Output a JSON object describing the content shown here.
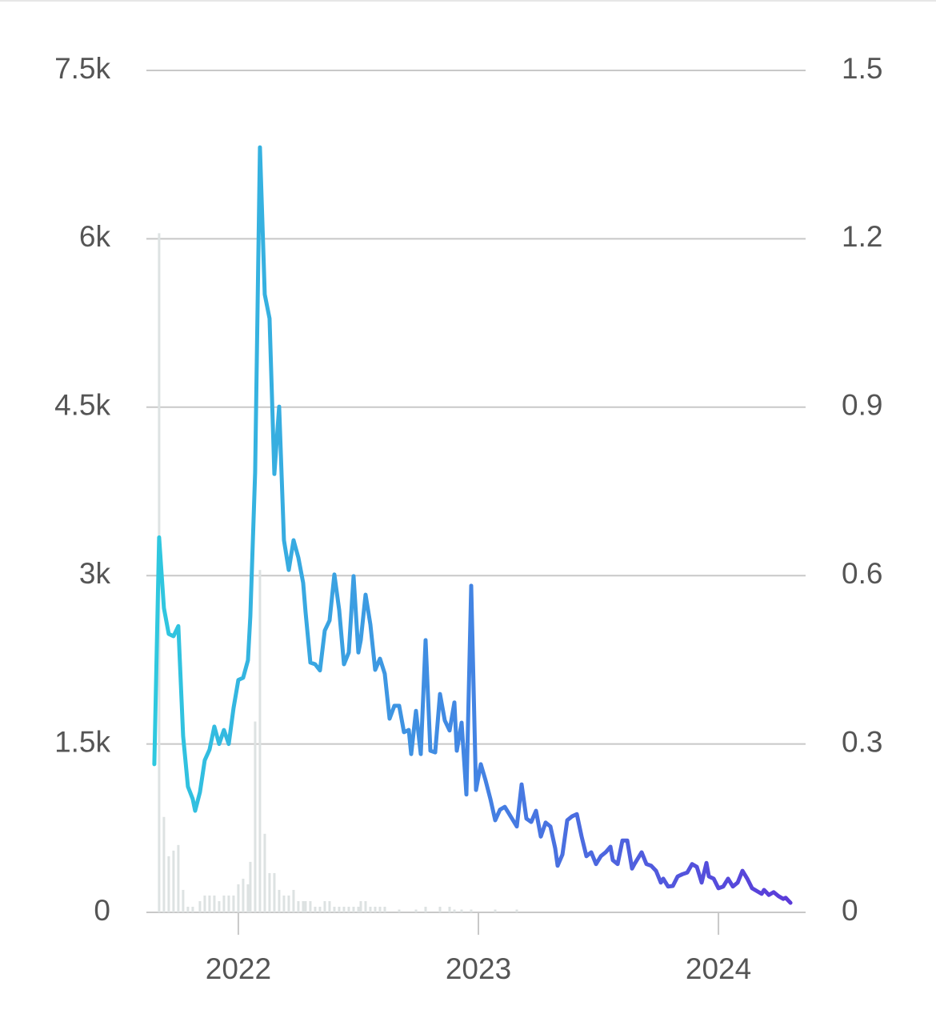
{
  "chart_data": {
    "type": "line",
    "xlim": [
      2021.617,
      2024.363
    ],
    "xticks": [
      2022,
      2023,
      2024
    ],
    "ylim": [
      0,
      7500
    ],
    "yticks": [
      0,
      {
        "value": 1500,
        "label": "1.5k"
      },
      {
        "value": 3000,
        "label": "3k"
      },
      {
        "value": 4500,
        "label": "4.5k"
      },
      {
        "value": 6000,
        "label": "6k"
      },
      {
        "value": 7500,
        "label": "7.5k"
      }
    ],
    "y2lim": [
      0,
      1.5
    ],
    "y2ticks": [
      0,
      0.3,
      0.6,
      0.9,
      1.2,
      1.5
    ],
    "grid": true,
    "series": [
      {
        "type": "bar",
        "axis": "y2",
        "color": "#dde2e2",
        "x": [
          2021.67,
          2021.69,
          2021.71,
          2021.73,
          2021.75,
          2021.77,
          2021.79,
          2021.81,
          2021.84,
          2021.86,
          2021.88,
          2021.9,
          2021.92,
          2021.94,
          2021.96,
          2021.98,
          2022.0,
          2022.02,
          2022.04,
          2022.05,
          2022.07,
          2022.09,
          2022.11,
          2022.13,
          2022.15,
          2022.17,
          2022.19,
          2022.21,
          2022.23,
          2022.25,
          2022.27,
          2022.28,
          2022.3,
          2022.32,
          2022.34,
          2022.36,
          2022.38,
          2022.4,
          2022.42,
          2022.44,
          2022.46,
          2022.48,
          2022.5,
          2022.51,
          2022.53,
          2022.55,
          2022.57,
          2022.59,
          2022.61,
          2022.67,
          2022.74,
          2022.78,
          2022.84,
          2022.88,
          2022.9,
          2022.93,
          2022.97,
          2023.07,
          2023.16
        ],
        "values": [
          1.21,
          0.17,
          0.1,
          0.11,
          0.12,
          0.04,
          0.01,
          0.01,
          0.02,
          0.03,
          0.03,
          0.03,
          0.02,
          0.03,
          0.03,
          0.03,
          0.05,
          0.06,
          0.05,
          0.09,
          0.34,
          0.61,
          0.14,
          0.07,
          0.07,
          0.04,
          0.03,
          0.03,
          0.04,
          0.02,
          0.02,
          0.02,
          0.02,
          0.01,
          0.01,
          0.02,
          0.02,
          0.01,
          0.01,
          0.01,
          0.01,
          0.01,
          0.01,
          0.02,
          0.02,
          0.01,
          0.01,
          0.01,
          0.01,
          0.005,
          0.005,
          0.01,
          0.01,
          0.01,
          0.005,
          0.005,
          0.005,
          0.005,
          0.005
        ]
      },
      {
        "type": "line",
        "color": [
          "#2fc8df",
          "#4384e3",
          "#5b3bd9"
        ],
        "x": [
          2021.65,
          2021.67,
          2021.69,
          2021.71,
          2021.73,
          2021.75,
          2021.77,
          2021.79,
          2021.81,
          2021.82,
          2021.84,
          2021.86,
          2021.88,
          2021.9,
          2021.92,
          2021.94,
          2021.96,
          2021.98,
          2022.0,
          2022.02,
          2022.04,
          2022.05,
          2022.07,
          2022.09,
          2022.11,
          2022.13,
          2022.15,
          2022.17,
          2022.19,
          2022.21,
          2022.23,
          2022.25,
          2022.27,
          2022.28,
          2022.3,
          2022.32,
          2022.34,
          2022.36,
          2022.38,
          2022.4,
          2022.42,
          2022.44,
          2022.46,
          2022.48,
          2022.5,
          2022.51,
          2022.53,
          2022.55,
          2022.57,
          2022.59,
          2022.61,
          2022.63,
          2022.65,
          2022.67,
          2022.69,
          2022.71,
          2022.72,
          2022.74,
          2022.76,
          2022.78,
          2022.8,
          2022.82,
          2022.84,
          2022.86,
          2022.88,
          2022.9,
          2022.91,
          2022.93,
          2022.95,
          2022.97,
          2022.99,
          2023.01,
          2023.03,
          2023.05,
          2023.07,
          2023.09,
          2023.11,
          2023.13,
          2023.14,
          2023.16,
          2023.18,
          2023.2,
          2023.22,
          2023.24,
          2023.26,
          2023.28,
          2023.3,
          2023.32,
          2023.33,
          2023.35,
          2023.37,
          2023.39,
          2023.41,
          2023.43,
          2023.45,
          2023.47,
          2023.49,
          2023.51,
          2023.53,
          2023.55,
          2023.56,
          2023.58,
          2023.6,
          2023.62,
          2023.64,
          2023.65,
          2023.68,
          2023.7,
          2023.72,
          2023.74,
          2023.76,
          2023.77,
          2023.79,
          2023.81,
          2023.83,
          2023.85,
          2023.87,
          2023.89,
          2023.91,
          2023.93,
          2023.95,
          2023.96,
          2023.98,
          2024.0,
          2024.02,
          2024.04,
          2024.06,
          2024.08,
          2024.1,
          2024.12,
          2024.14,
          2024.16,
          2024.18,
          2024.19,
          2024.21,
          2024.23,
          2024.25,
          2024.27,
          2024.28,
          2024.3
        ],
        "values": [
          1320,
          3340,
          2710,
          2480,
          2460,
          2550,
          1570,
          1120,
          1010,
          905,
          1070,
          1355,
          1450,
          1655,
          1500,
          1625,
          1500,
          1820,
          2070,
          2090,
          2245,
          2640,
          3920,
          6815,
          5505,
          5290,
          3905,
          4505,
          3315,
          3050,
          3315,
          3160,
          2935,
          2675,
          2225,
          2210,
          2155,
          2510,
          2600,
          3010,
          2695,
          2210,
          2315,
          2995,
          2315,
          2425,
          2830,
          2565,
          2160,
          2260,
          2125,
          1725,
          1840,
          1840,
          1605,
          1625,
          1410,
          1795,
          1410,
          2425,
          1440,
          1425,
          1945,
          1710,
          1620,
          1870,
          1440,
          1690,
          1050,
          2910,
          1090,
          1320,
          1175,
          1010,
          820,
          915,
          940,
          870,
          835,
          765,
          1140,
          835,
          805,
          905,
          675,
          800,
          765,
          570,
          415,
          515,
          820,
          855,
          875,
          675,
          500,
          535,
          430,
          500,
          535,
          585,
          465,
          430,
          640,
          640,
          390,
          430,
          535,
          430,
          415,
          370,
          265,
          300,
          230,
          235,
          320,
          340,
          355,
          430,
          405,
          265,
          440,
          320,
          300,
          215,
          230,
          300,
          230,
          265,
          370,
          300,
          215,
          190,
          165,
          200,
          155,
          180,
          145,
          120,
          130,
          85
        ]
      }
    ]
  }
}
